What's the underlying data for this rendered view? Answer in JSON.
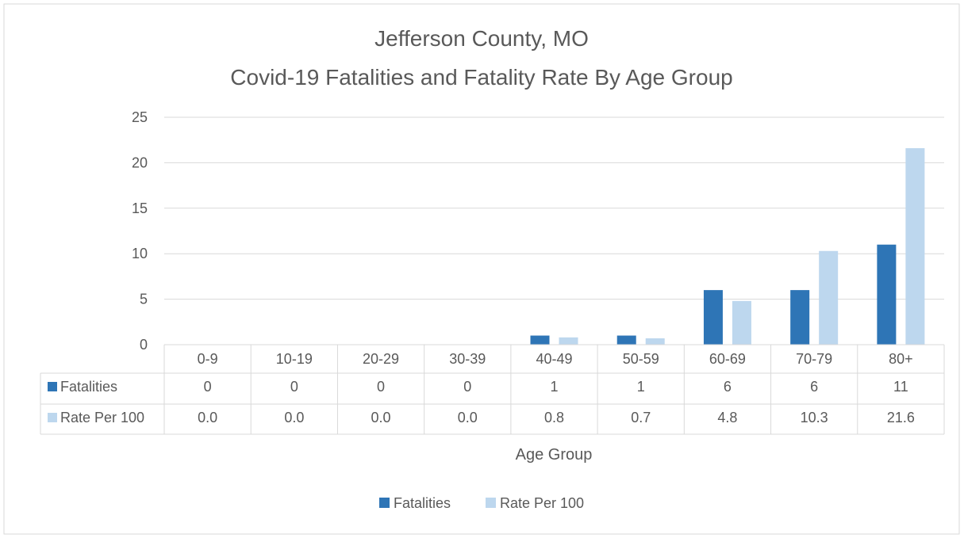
{
  "chart_data": {
    "type": "bar",
    "title_line1": "Jefferson County, MO",
    "title_line2": "Covid-19 Fatalities and Fatality Rate By Age Group",
    "xlabel": "Age Group",
    "ylabel": "",
    "ylim": [
      0,
      25
    ],
    "yticks": [
      0,
      5,
      10,
      15,
      20,
      25
    ],
    "grid": true,
    "legend_position": "bottom",
    "categories": [
      "0-9",
      "10-19",
      "20-29",
      "30-39",
      "40-49",
      "50-59",
      "60-69",
      "70-79",
      "80+"
    ],
    "series": [
      {
        "name": "Fatalities",
        "color": "#2e75b6",
        "values": [
          0,
          0,
          0,
          0,
          1,
          1,
          6,
          6,
          11
        ],
        "table_labels": [
          "0",
          "0",
          "0",
          "0",
          "1",
          "1",
          "6",
          "6",
          "11"
        ]
      },
      {
        "name": "Rate Per 100",
        "color": "#bdd7ee",
        "values": [
          0.0,
          0.0,
          0.0,
          0.0,
          0.8,
          0.7,
          4.8,
          10.3,
          21.6
        ],
        "table_labels": [
          "0.0",
          "0.0",
          "0.0",
          "0.0",
          "0.8",
          "0.7",
          "4.8",
          "10.3",
          "21.6"
        ]
      }
    ]
  }
}
